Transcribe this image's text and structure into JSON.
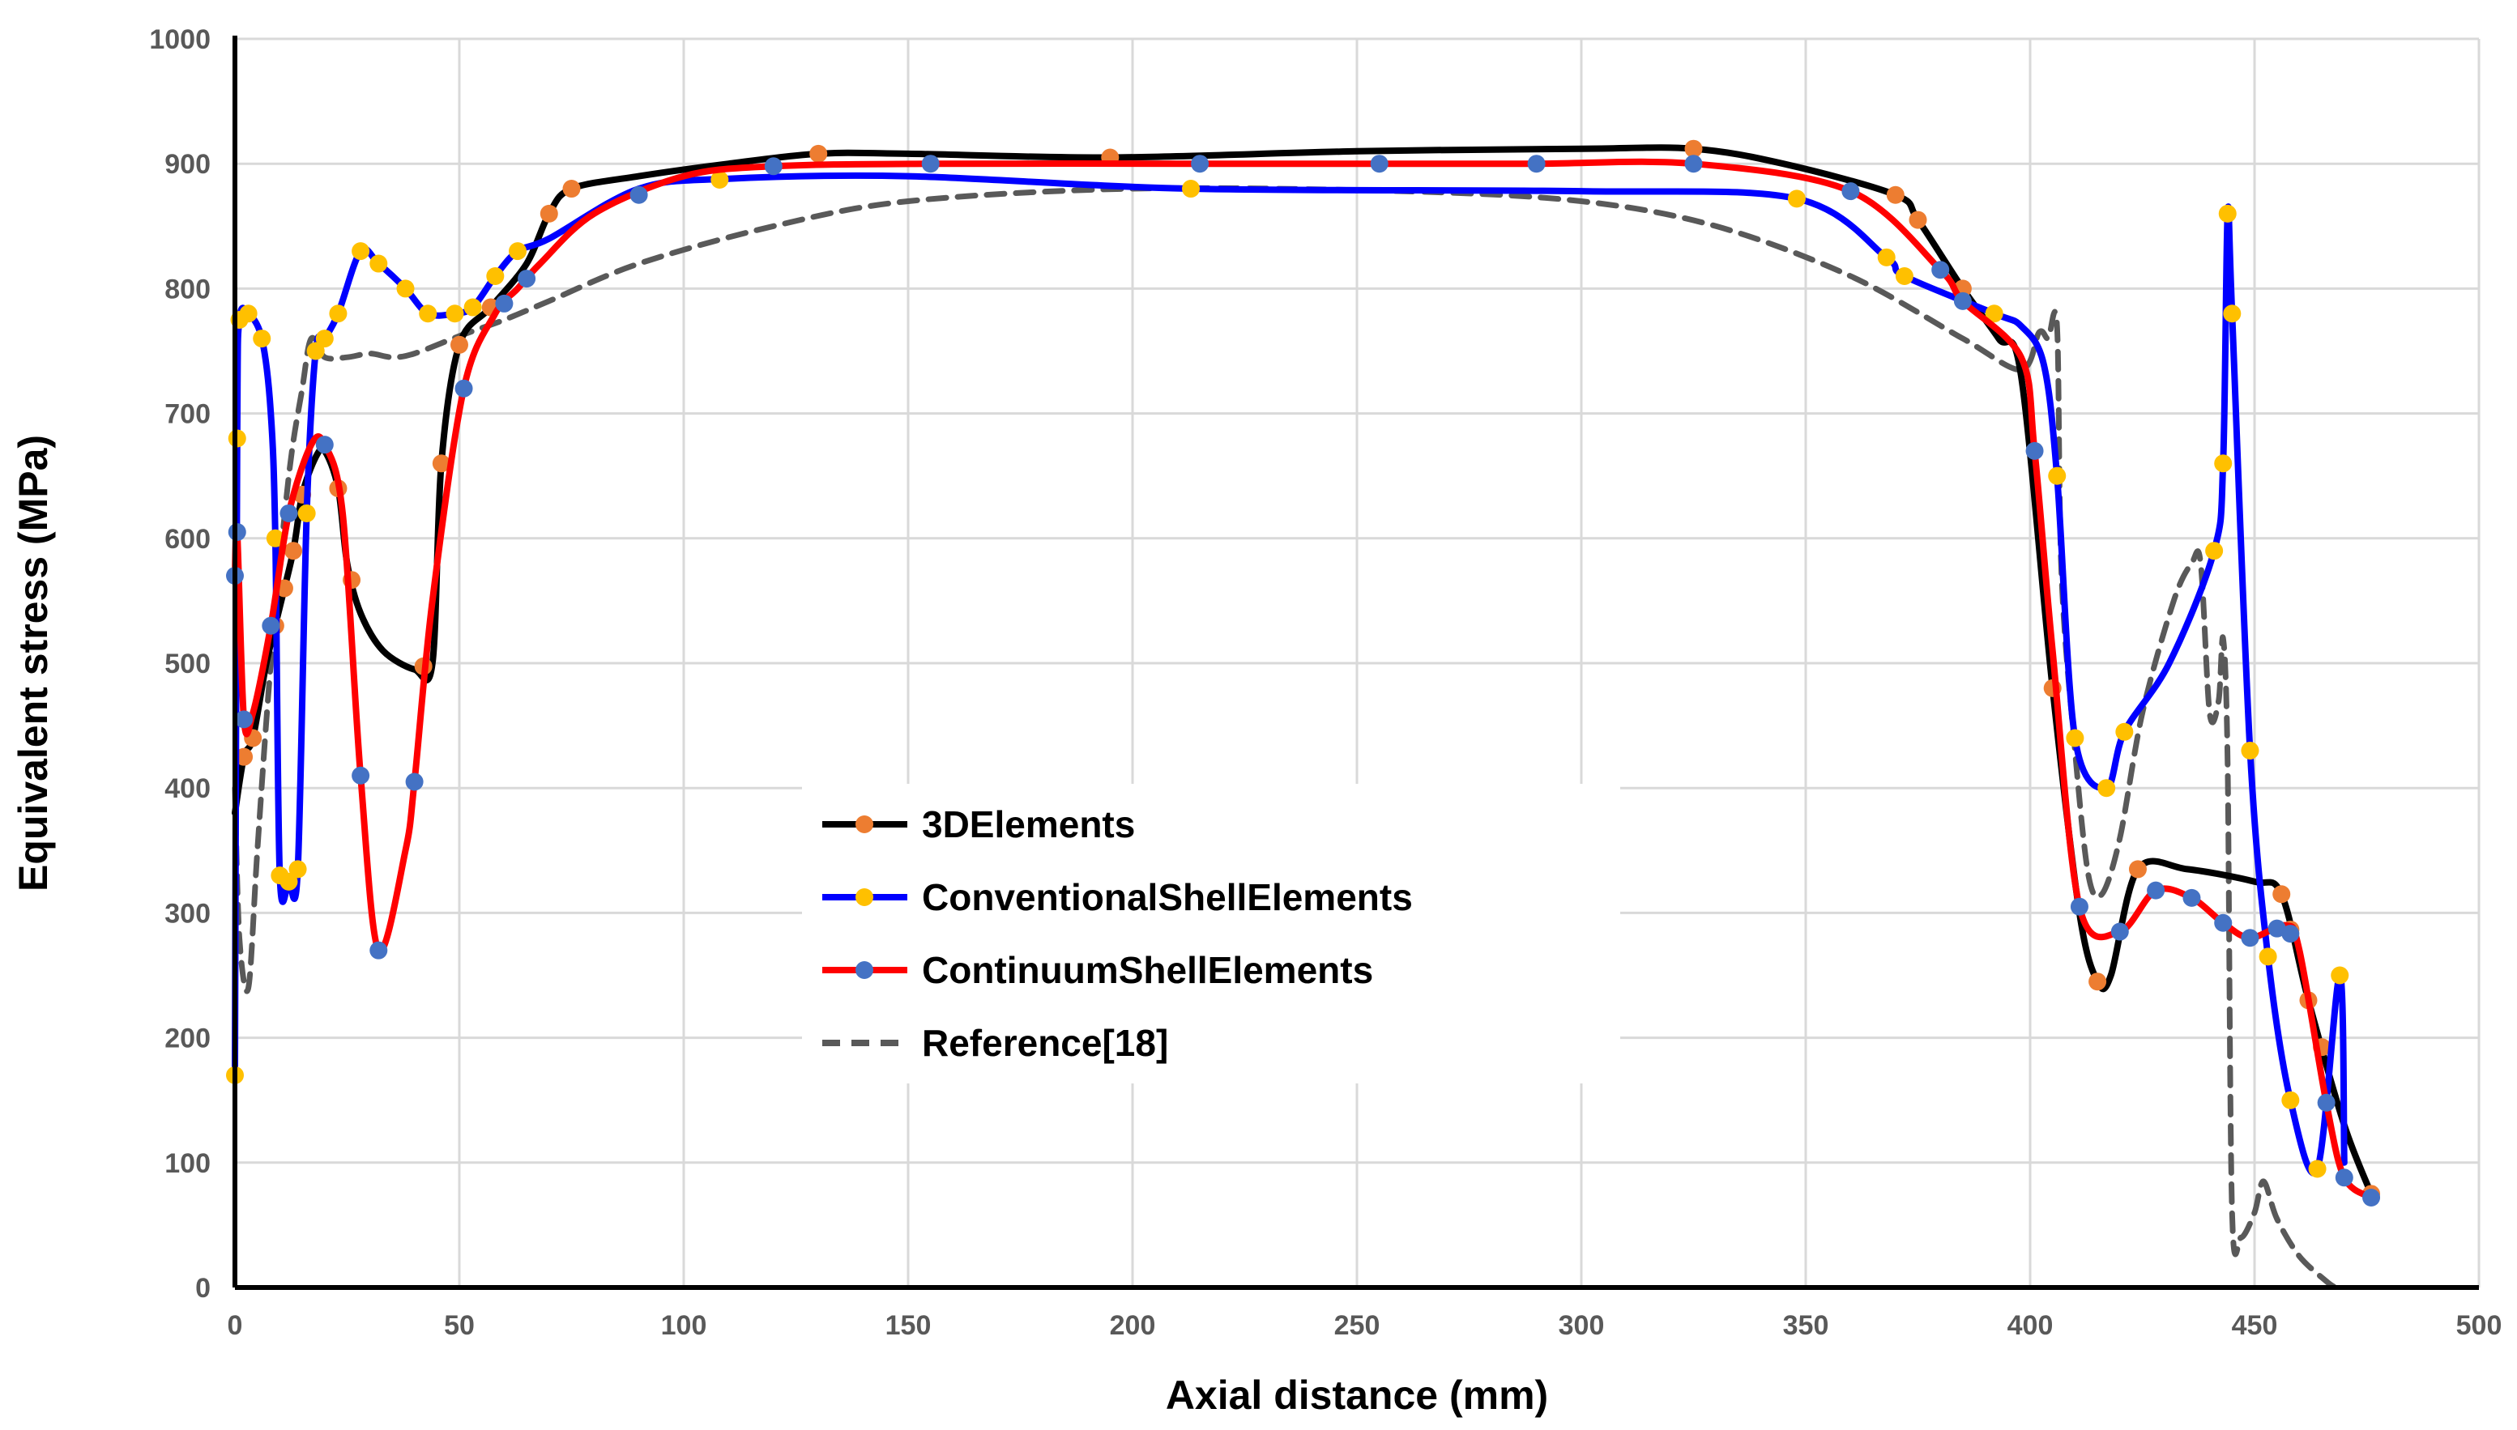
{
  "chart_data": {
    "type": "line",
    "title": "",
    "xlabel": "Axial distance (mm)",
    "ylabel": "Equivalent stress (MPa)",
    "xlim": [
      0,
      500
    ],
    "ylim": [
      0,
      1000
    ],
    "x_ticks": [
      "0",
      "50",
      "100",
      "150",
      "200",
      "250",
      "300",
      "350",
      "400",
      "450",
      "500"
    ],
    "y_ticks": [
      "0",
      "100",
      "200",
      "300",
      "400",
      "500",
      "600",
      "700",
      "800",
      "900",
      "1000"
    ],
    "grid": true,
    "legend_position": "center-left",
    "series": [
      {
        "name": "3DElements",
        "color": "#000000",
        "marker_color": "#ED7D31",
        "dash": false,
        "points": [
          [
            0,
            380
          ],
          [
            2,
            425
          ],
          [
            4,
            440
          ],
          [
            7,
            500
          ],
          [
            10,
            545
          ],
          [
            13,
            590
          ],
          [
            15,
            635
          ],
          [
            18,
            665
          ],
          [
            20,
            670
          ],
          [
            23,
            640
          ],
          [
            25,
            580
          ],
          [
            28,
            540
          ],
          [
            33,
            510
          ],
          [
            40,
            495
          ],
          [
            44,
            500
          ],
          [
            46,
            660
          ],
          [
            50,
            755
          ],
          [
            57,
            785
          ],
          [
            65,
            820
          ],
          [
            70,
            860
          ],
          [
            75,
            880
          ],
          [
            90,
            890
          ],
          [
            110,
            900
          ],
          [
            130,
            908
          ],
          [
            150,
            908
          ],
          [
            195,
            905
          ],
          [
            250,
            910
          ],
          [
            300,
            912
          ],
          [
            325,
            912
          ],
          [
            345,
            900
          ],
          [
            370,
            875
          ],
          [
            375,
            855
          ],
          [
            385,
            800
          ],
          [
            393,
            760
          ],
          [
            398,
            730
          ],
          [
            405,
            480
          ],
          [
            411,
            300
          ],
          [
            415,
            245
          ],
          [
            418,
            250
          ],
          [
            424,
            335
          ],
          [
            435,
            335
          ],
          [
            450,
            325
          ],
          [
            456,
            315
          ],
          [
            462,
            230
          ],
          [
            470,
            130
          ],
          [
            476,
            75
          ]
        ],
        "marker_x": [
          2,
          4,
          9,
          11,
          13,
          15,
          23,
          26,
          42,
          46,
          50,
          57,
          70,
          75,
          130,
          195,
          325,
          370,
          375,
          385,
          405,
          415,
          424,
          456,
          458,
          462,
          465,
          476
        ]
      },
      {
        "name": "ConventionalShellElements",
        "color": "#0000FF",
        "marker_color": "#FFC000",
        "dash": false,
        "points": [
          [
            0,
            170
          ],
          [
            0.5,
            680
          ],
          [
            1,
            775
          ],
          [
            3,
            780
          ],
          [
            6,
            760
          ],
          [
            8,
            700
          ],
          [
            9,
            600
          ],
          [
            10,
            330
          ],
          [
            12,
            325
          ],
          [
            14,
            335
          ],
          [
            16,
            620
          ],
          [
            18,
            750
          ],
          [
            20,
            760
          ],
          [
            23,
            780
          ],
          [
            28,
            830
          ],
          [
            32,
            820
          ],
          [
            38,
            800
          ],
          [
            43,
            780
          ],
          [
            49,
            780
          ],
          [
            53,
            785
          ],
          [
            58,
            810
          ],
          [
            63,
            830
          ],
          [
            70,
            840
          ],
          [
            90,
            880
          ],
          [
            110,
            888
          ],
          [
            150,
            890
          ],
          [
            213,
            880
          ],
          [
            300,
            878
          ],
          [
            348,
            872
          ],
          [
            368,
            825
          ],
          [
            372,
            810
          ],
          [
            392,
            780
          ],
          [
            398,
            770
          ],
          [
            403,
            740
          ],
          [
            406,
            650
          ],
          [
            410,
            440
          ],
          [
            417,
            400
          ],
          [
            421,
            445
          ],
          [
            431,
            500
          ],
          [
            441,
            590
          ],
          [
            443,
            660
          ],
          [
            444,
            860
          ],
          [
            445,
            780
          ],
          [
            449,
            430
          ],
          [
            453,
            265
          ],
          [
            458,
            150
          ],
          [
            464,
            95
          ],
          [
            469,
            250
          ],
          [
            470,
            100
          ]
        ],
        "marker_x": [
          0,
          0.5,
          1,
          3,
          6,
          9,
          10,
          12,
          14,
          16,
          18,
          20,
          23,
          28,
          32,
          38,
          43,
          49,
          53,
          58,
          63,
          108,
          213,
          348,
          368,
          372,
          392,
          406,
          410,
          417,
          421,
          441,
          443,
          444,
          445,
          449,
          453,
          458,
          464,
          469
        ]
      },
      {
        "name": "ContinuumShellElements",
        "color": "#FF0000",
        "marker_color": "#4472C4",
        "dash": false,
        "points": [
          [
            0,
            570
          ],
          [
            0.5,
            605
          ],
          [
            2,
            455
          ],
          [
            4,
            460
          ],
          [
            8,
            530
          ],
          [
            12,
            620
          ],
          [
            17,
            675
          ],
          [
            20,
            675
          ],
          [
            24,
            620
          ],
          [
            28,
            410
          ],
          [
            32,
            270
          ],
          [
            38,
            350
          ],
          [
            40,
            405
          ],
          [
            44,
            550
          ],
          [
            51,
            720
          ],
          [
            58,
            780
          ],
          [
            63,
            800
          ],
          [
            68,
            820
          ],
          [
            80,
            860
          ],
          [
            100,
            890
          ],
          [
            120,
            898
          ],
          [
            155,
            900
          ],
          [
            215,
            900
          ],
          [
            255,
            900
          ],
          [
            290,
            900
          ],
          [
            325,
            900
          ],
          [
            360,
            878
          ],
          [
            380,
            815
          ],
          [
            385,
            790
          ],
          [
            398,
            745
          ],
          [
            401,
            670
          ],
          [
            405,
            510
          ],
          [
            411,
            305
          ],
          [
            420,
            285
          ],
          [
            428,
            318
          ],
          [
            436,
            312
          ],
          [
            443,
            292
          ],
          [
            449,
            280
          ],
          [
            457,
            290
          ],
          [
            460,
            270
          ],
          [
            466,
            148
          ],
          [
            470,
            88
          ],
          [
            476,
            72
          ]
        ],
        "marker_x": [
          0,
          0.5,
          2,
          8,
          12,
          20,
          28,
          32,
          40,
          51,
          60,
          65,
          90,
          120,
          155,
          215,
          255,
          290,
          325,
          360,
          380,
          385,
          401,
          411,
          420,
          428,
          436,
          443,
          449,
          455,
          458,
          466,
          470,
          476
        ]
      },
      {
        "name": "Reference[18]",
        "color": "#595959",
        "marker_color": "",
        "dash": true,
        "points": [
          [
            0,
            400
          ],
          [
            1,
            280
          ],
          [
            3,
            240
          ],
          [
            5,
            350
          ],
          [
            8,
            500
          ],
          [
            12,
            650
          ],
          [
            15,
            720
          ],
          [
            17,
            760
          ],
          [
            20,
            745
          ],
          [
            25,
            745
          ],
          [
            30,
            748
          ],
          [
            35,
            745
          ],
          [
            40,
            748
          ],
          [
            50,
            762
          ],
          [
            60,
            775
          ],
          [
            70,
            790
          ],
          [
            90,
            820
          ],
          [
            120,
            850
          ],
          [
            150,
            870
          ],
          [
            200,
            880
          ],
          [
            260,
            878
          ],
          [
            300,
            870
          ],
          [
            330,
            850
          ],
          [
            360,
            810
          ],
          [
            385,
            760
          ],
          [
            398,
            735
          ],
          [
            402,
            765
          ],
          [
            404,
            760
          ],
          [
            406,
            770
          ],
          [
            407,
            570
          ],
          [
            410,
            430
          ],
          [
            413,
            330
          ],
          [
            416,
            315
          ],
          [
            420,
            360
          ],
          [
            425,
            460
          ],
          [
            432,
            550
          ],
          [
            436,
            580
          ],
          [
            438,
            580
          ],
          [
            440,
            460
          ],
          [
            442,
            470
          ],
          [
            443,
            520
          ],
          [
            444,
            420
          ],
          [
            445,
            60
          ],
          [
            447,
            40
          ],
          [
            450,
            60
          ],
          [
            452,
            85
          ],
          [
            455,
            55
          ],
          [
            460,
            25
          ],
          [
            466,
            5
          ],
          [
            468,
            0
          ]
        ],
        "marker_x": []
      }
    ]
  }
}
